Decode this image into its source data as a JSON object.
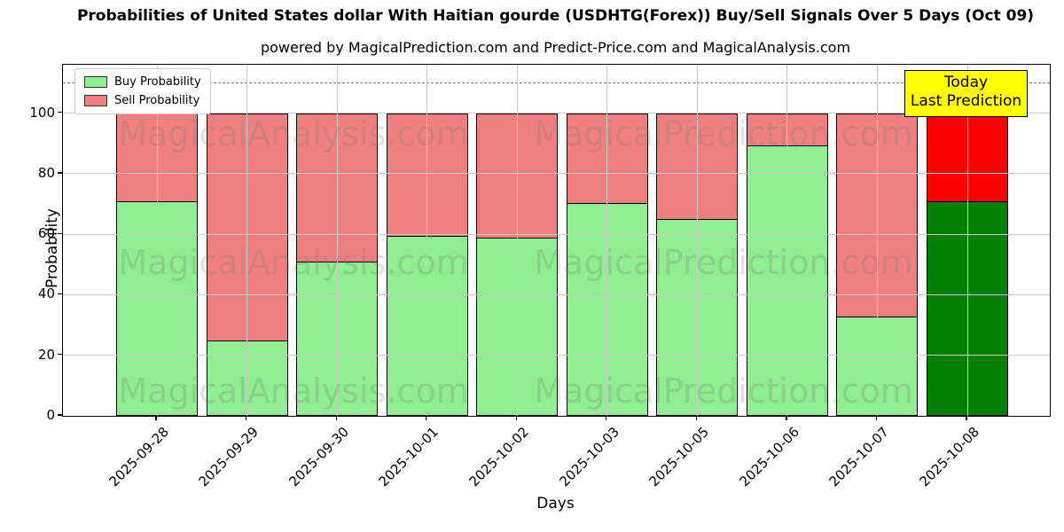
{
  "title": "Probabilities of United States dollar With Haitian gourde (USDHTG(Forex)) Buy/Sell Signals Over 5 Days (Oct 09)",
  "subtitle": "powered by MagicalPrediction.com and Predict-Price.com and MagicalAnalysis.com",
  "axes": {
    "x_label": "Days",
    "y_label": "Probability",
    "y_ticks": [
      0,
      20,
      40,
      60,
      80,
      100
    ],
    "ylim": [
      0,
      116
    ],
    "grid": "on",
    "threshold_line_y": 110
  },
  "legend": {
    "position": "upper-left",
    "items": [
      {
        "label": "Buy Probability",
        "color": "#90EE90"
      },
      {
        "label": "Sell Probability",
        "color": "#F08080"
      }
    ]
  },
  "annotation": {
    "lines": [
      "Today",
      "Last Prediction"
    ],
    "bg_color": "#FFFF00",
    "border_color": "#000000"
  },
  "watermarks": [
    "MagicalAnalysis.com",
    "MagicalPrediction.com"
  ],
  "chart_data": {
    "type": "bar",
    "stacked": true,
    "title": "Probabilities of United States dollar With Haitian gourde (USDHTG(Forex)) Buy/Sell Signals Over 5 Days (Oct 09)",
    "xlabel": "Days",
    "ylabel": "Probability",
    "ylim": [
      0,
      116
    ],
    "categories": [
      "2025-09-28",
      "2025-09-29",
      "2025-09-30",
      "2025-10-01",
      "2025-10-02",
      "2025-10-03",
      "2025-10-05",
      "2025-10-06",
      "2025-10-07",
      "2025-10-08"
    ],
    "series": [
      {
        "name": "Buy Probability",
        "color": "#90EE90",
        "today_color": "#008000",
        "values": [
          71,
          25,
          51,
          59.5,
          59,
          70.5,
          65,
          89.5,
          33,
          71
        ]
      },
      {
        "name": "Sell Probability",
        "color": "#F08080",
        "today_color": "#FF0000",
        "values": [
          29,
          75,
          49,
          40.5,
          41,
          29.5,
          35,
          10.5,
          67,
          29
        ]
      }
    ],
    "today_category": "2025-10-08"
  }
}
